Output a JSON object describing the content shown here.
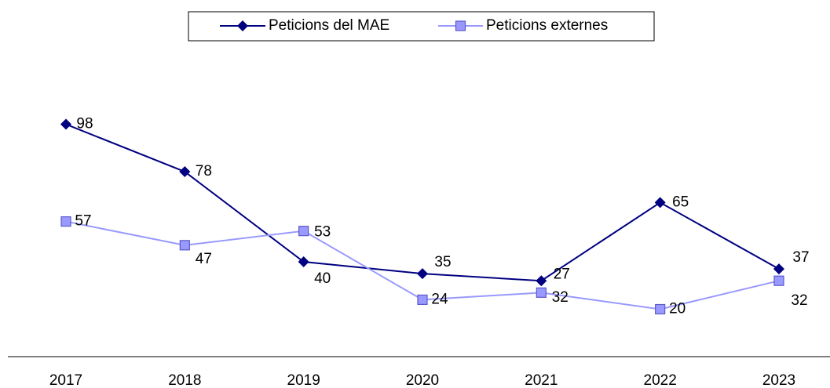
{
  "chart_data": {
    "type": "line",
    "categories": [
      "2017",
      "2018",
      "2019",
      "2020",
      "2021",
      "2022",
      "2023"
    ],
    "series": [
      {
        "name": "Peticions del MAE",
        "color": "#000080",
        "marker": "diamond",
        "values": [
          98,
          78,
          40,
          35,
          32,
          65,
          37
        ]
      },
      {
        "name": "Peticions externes",
        "color": "#9999ff",
        "marker": "square",
        "values": [
          57,
          47,
          53,
          24,
          27,
          20,
          32
        ]
      }
    ],
    "ylim": [
      0,
      120
    ],
    "grid": false,
    "legend": "top"
  }
}
